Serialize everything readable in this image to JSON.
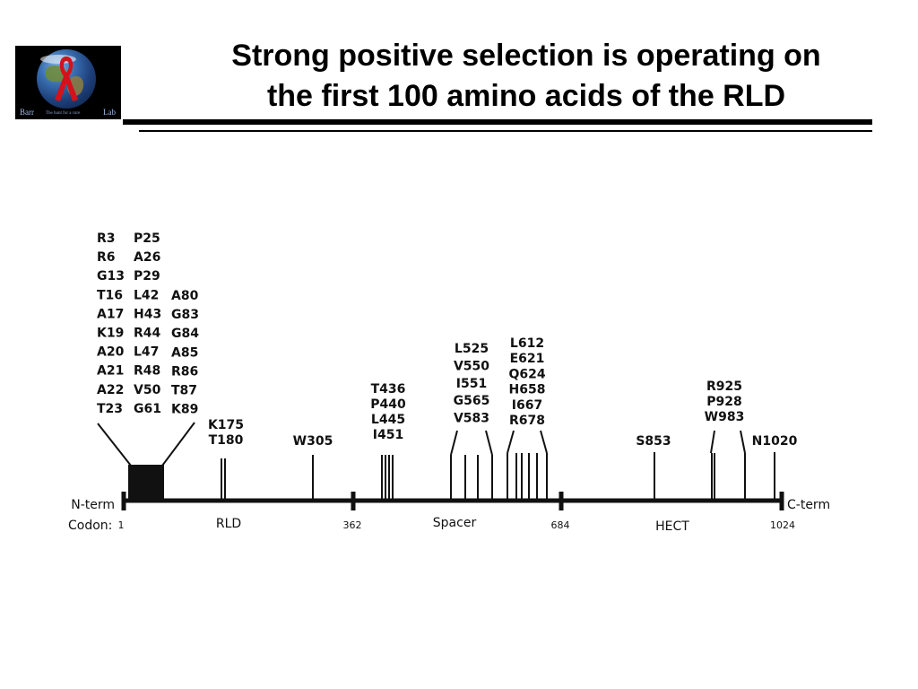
{
  "title": {
    "line1": "Strong positive selection is operating on",
    "line2": "the first 100 amino acids of the RLD"
  },
  "logo": {
    "left_text": "Barr",
    "right_text": "Lab",
    "small_text": "The hunt    for a cure"
  },
  "diagram": {
    "n_term": "N-term",
    "c_term": "C-term",
    "codon_label": "Codon:",
    "codon_marks": [
      "1",
      "362",
      "684",
      "1024"
    ],
    "domains": [
      "RLD",
      "Spacer",
      "HECT"
    ],
    "groups": [
      [
        "R3",
        "R6",
        "G13",
        "T16",
        "A17",
        "K19",
        "A20",
        "A21",
        "A22",
        "T23"
      ],
      [
        "P25",
        "A26",
        "P29",
        "L42",
        "H43",
        "R44",
        "L47",
        "R48",
        "V50",
        "G61"
      ],
      [
        "A80",
        "G83",
        "G84",
        "A85",
        "R86",
        "T87",
        "K89"
      ],
      [
        "K175",
        "T180"
      ],
      [
        "W305"
      ],
      [
        "T436",
        "P440",
        "L445",
        "I451"
      ],
      [
        "L525",
        "V550",
        "I551",
        "G565",
        "V583"
      ],
      [
        "L612",
        "E621",
        "Q624",
        "H658",
        "I667",
        "R678"
      ],
      [
        "S853"
      ],
      [
        "R925",
        "P928",
        "W983"
      ],
      [
        "N1020"
      ]
    ]
  }
}
